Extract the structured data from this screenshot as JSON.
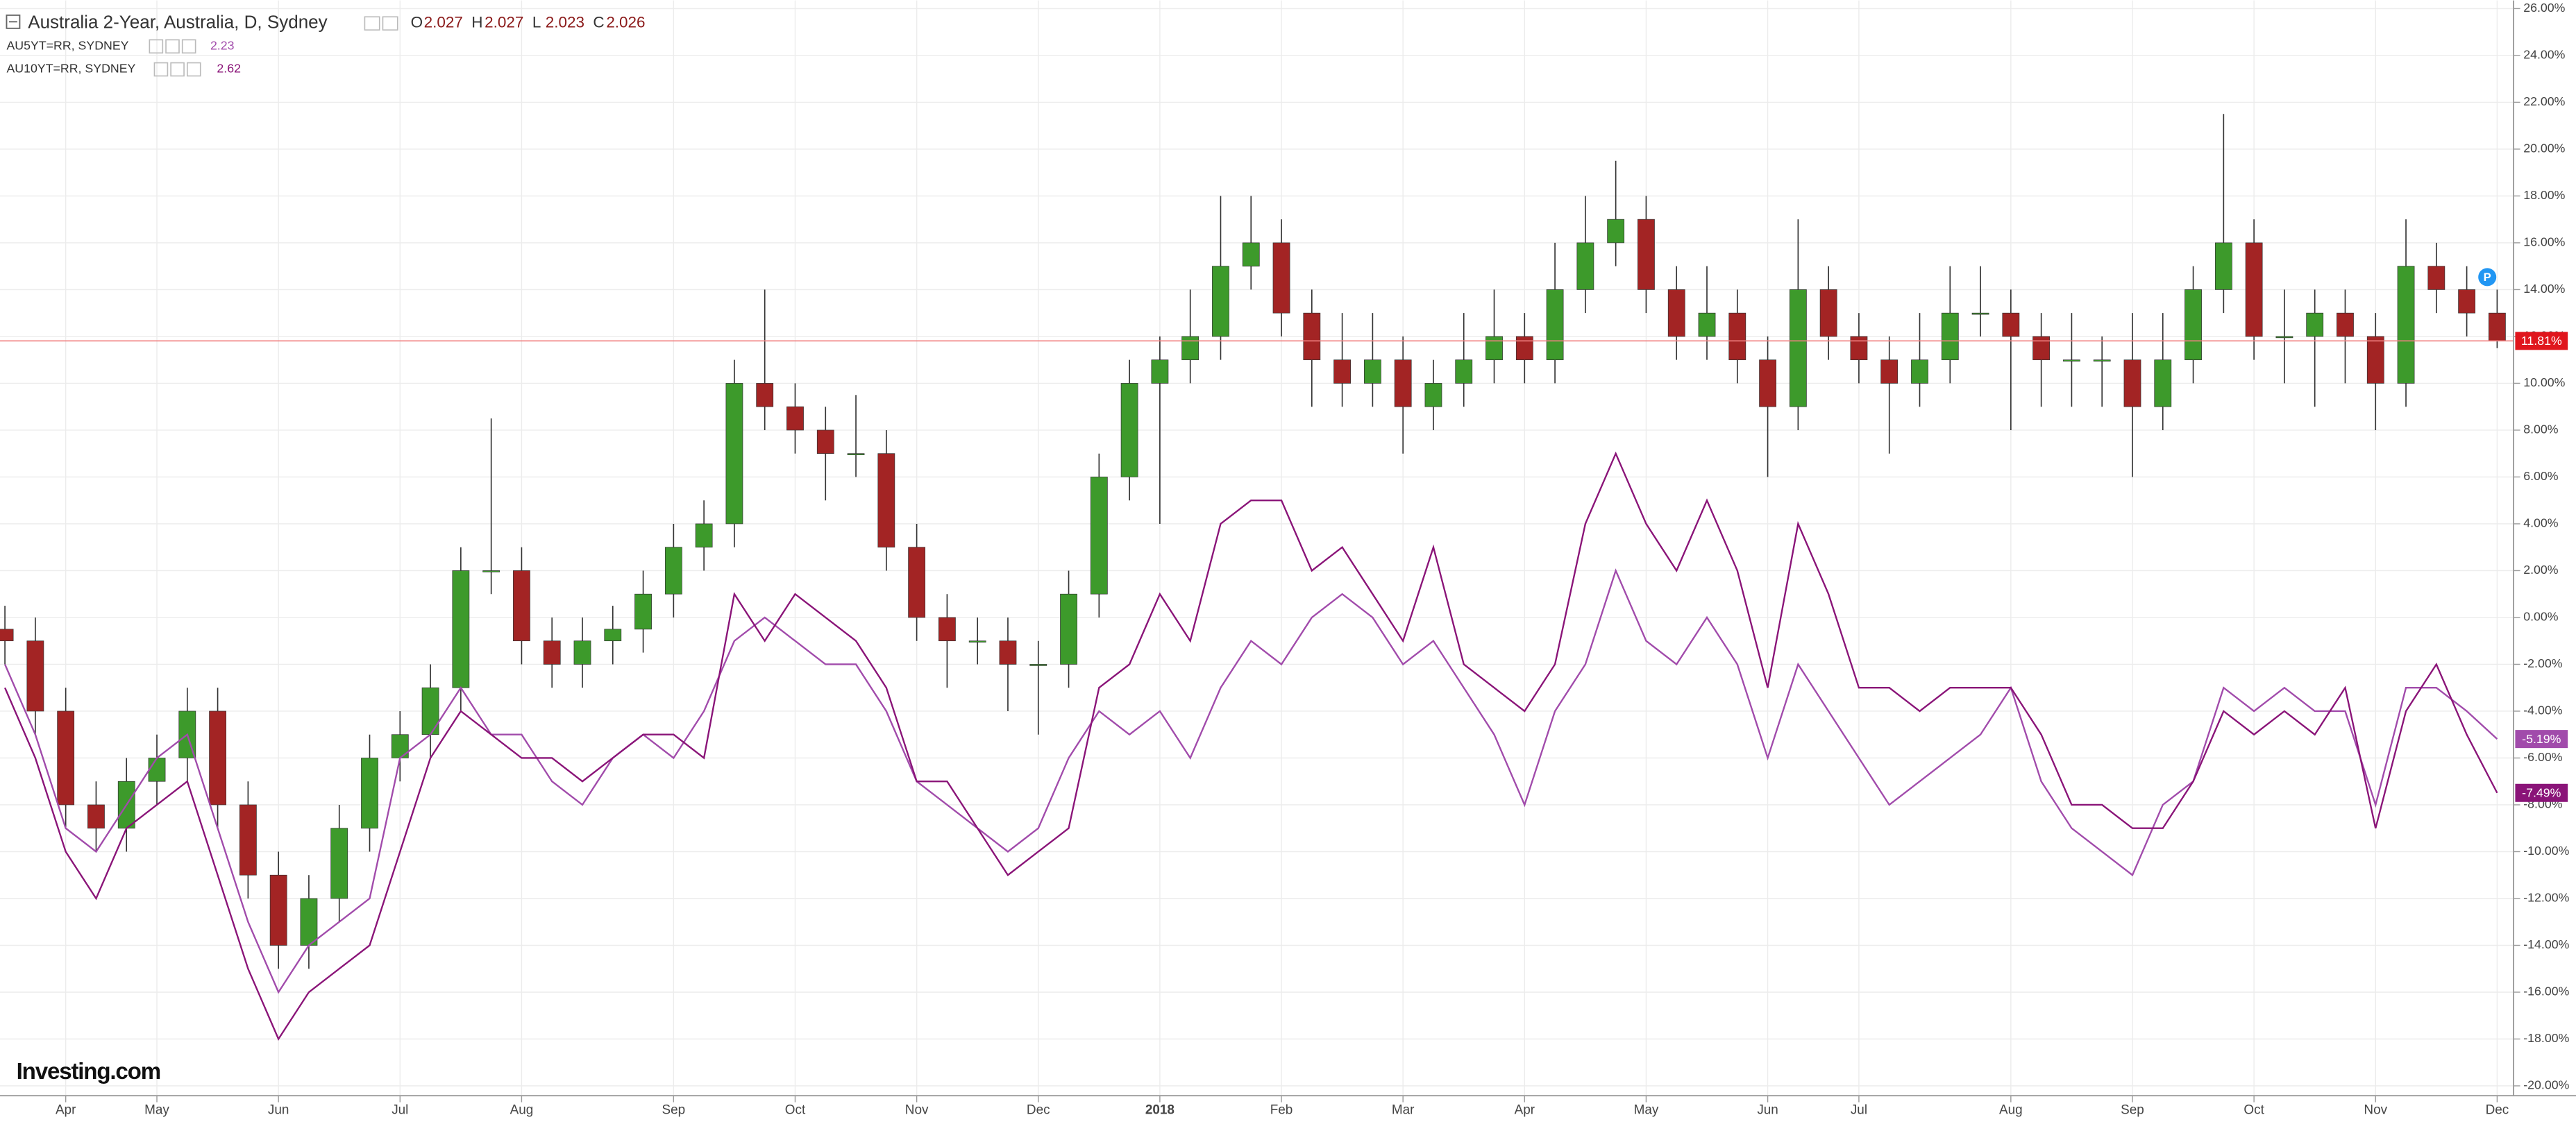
{
  "chart_data": {
    "type": "candlestick",
    "logo": "Investing.com",
    "badge": "P",
    "categories": [
      null,
      null,
      "Apr",
      null,
      null,
      "May",
      null,
      null,
      null,
      "Jun",
      null,
      null,
      null,
      "Jul",
      null,
      null,
      null,
      "Aug",
      null,
      null,
      null,
      null,
      "Sep",
      null,
      null,
      null,
      "Oct",
      null,
      null,
      null,
      "Nov",
      null,
      null,
      null,
      "Dec",
      null,
      null,
      null,
      "2018",
      null,
      null,
      null,
      "Feb",
      null,
      null,
      null,
      "Mar",
      null,
      null,
      null,
      "Apr",
      null,
      null,
      null,
      "May",
      null,
      null,
      null,
      "Jun",
      null,
      null,
      "Jul",
      null,
      null,
      null,
      null,
      "Aug",
      null,
      null,
      null,
      "Sep",
      null,
      null,
      null,
      "Oct",
      null,
      null,
      null,
      "Nov",
      null,
      null,
      null,
      "Dec"
    ],
    "ylim": [
      -20.42,
      26.35
    ],
    "yticks": [
      {
        "value": 26,
        "label": "26.00%"
      },
      {
        "value": 24,
        "label": "24.00%"
      },
      {
        "value": 22,
        "label": "22.00%"
      },
      {
        "value": 20,
        "label": "20.00%"
      },
      {
        "value": 18,
        "label": "18.00%"
      },
      {
        "value": 16,
        "label": "16.00%"
      },
      {
        "value": 14,
        "label": "14.00%"
      },
      {
        "value": 12,
        "label": "12.00%"
      },
      {
        "value": 10,
        "label": "10.00%"
      },
      {
        "value": 8,
        "label": "8.00%"
      },
      {
        "value": 6,
        "label": "6.00%"
      },
      {
        "value": 4,
        "label": "4.00%"
      },
      {
        "value": 2,
        "label": "2.00%"
      },
      {
        "value": 0,
        "label": "0.00%"
      },
      {
        "value": -2,
        "label": "-2.00%"
      },
      {
        "value": -4,
        "label": "-4.00%"
      },
      {
        "value": -6,
        "label": "-6.00%"
      },
      {
        "value": -8,
        "label": "-8.00%"
      },
      {
        "value": -10,
        "label": "-10.00%"
      },
      {
        "value": -12,
        "label": "-12.00%"
      },
      {
        "value": -14,
        "label": "-14.00%"
      },
      {
        "value": -16,
        "label": "-16.00%"
      },
      {
        "value": -18,
        "label": "-18.00%"
      },
      {
        "value": -20,
        "label": "-20.00%"
      }
    ],
    "grid": true,
    "series": [
      {
        "name": "Australia 2-Year, Australia, D, Sydney",
        "type": "candlestick",
        "up_color": "#3d9a2b",
        "down_color": "#a32424",
        "last_line_color": "#f08080",
        "label_color": "#e0161d",
        "quote": [
          {
            "label": "O",
            "value": "2.027"
          },
          {
            "label": "H",
            "value": "2.027"
          },
          {
            "label": "L",
            "value": "2.023"
          },
          {
            "label": "C",
            "value": "2.026"
          }
        ],
        "open": [
          -0.5,
          -1,
          -4,
          -8,
          -9,
          -7,
          -6,
          -4,
          -8,
          -11,
          -14,
          -12,
          -9,
          -6,
          -5,
          -3,
          2,
          2,
          -1,
          -2,
          -1,
          -0.5,
          1,
          3,
          4,
          10,
          9,
          8,
          7,
          7,
          3,
          0,
          -1,
          -1,
          -2,
          -2,
          1,
          6,
          10,
          11,
          12,
          15,
          16,
          13,
          11,
          10,
          11,
          9,
          10,
          11,
          12,
          11,
          14,
          16,
          17,
          14,
          12,
          13,
          11,
          9,
          14,
          12,
          11,
          10,
          11,
          13,
          13,
          12,
          11,
          11,
          11,
          9,
          11,
          14,
          16,
          12,
          12,
          13,
          12,
          10,
          15,
          14,
          13
        ],
        "high": [
          0.5,
          0,
          -3,
          -7,
          -6,
          -5,
          -3,
          -3,
          -7,
          -10,
          -11,
          -8,
          -5,
          -4,
          -2,
          3,
          8.5,
          3,
          0,
          0,
          0.5,
          2,
          4,
          5,
          11,
          14,
          10,
          9,
          9.5,
          8,
          4,
          1,
          0,
          0,
          -1,
          2,
          7,
          11,
          12,
          14,
          18,
          18,
          17,
          14,
          13,
          13,
          12,
          11,
          13,
          14,
          13,
          16,
          18,
          19.5,
          18,
          15,
          15,
          14,
          12,
          17,
          15,
          13,
          12,
          13,
          15,
          15,
          14,
          13,
          13,
          12,
          13,
          13,
          15,
          21.5,
          17,
          14,
          14,
          14,
          13,
          17,
          16,
          15,
          14
        ],
        "low": [
          -2,
          -5,
          -9,
          -10,
          -10,
          -8,
          -7,
          -9,
          -12,
          -15,
          -15,
          -13,
          -10,
          -7,
          -6,
          -4,
          1,
          -2,
          -3,
          -3,
          -2,
          -1.5,
          0,
          2,
          3,
          8,
          7,
          5,
          6,
          2,
          -1,
          -3,
          -2,
          -4,
          -5,
          -3,
          0,
          5,
          4,
          10,
          11,
          14,
          12,
          9,
          9,
          9,
          7,
          8,
          9,
          10,
          10,
          10,
          13,
          15,
          13,
          11,
          11,
          10,
          6,
          8,
          11,
          10,
          7,
          9,
          10,
          12,
          8,
          9,
          9,
          9,
          6,
          8,
          10,
          13,
          11,
          10,
          9,
          10,
          8,
          9,
          13,
          12,
          11.5
        ],
        "close": [
          -1,
          -4,
          -8,
          -9,
          -7,
          -6,
          -4,
          -8,
          -11,
          -14,
          -12,
          -9,
          -6,
          -5,
          -3,
          2,
          2,
          -1,
          -2,
          -1,
          -0.5,
          1,
          3,
          4,
          10,
          9,
          8,
          7,
          7,
          3,
          0,
          -1,
          -1,
          -2,
          -2,
          1,
          6,
          10,
          11,
          12,
          15,
          16,
          13,
          11,
          10,
          11,
          9,
          10,
          11,
          12,
          11,
          14,
          16,
          17,
          14,
          12,
          13,
          11,
          9,
          14,
          12,
          11,
          10,
          11,
          13,
          13,
          12,
          11,
          11,
          11,
          9,
          11,
          14,
          16,
          12,
          12,
          13,
          12,
          10,
          15,
          14,
          13,
          11.81
        ],
        "value_labels": [
          null,
          null,
          null,
          null,
          null,
          null,
          null,
          null,
          null,
          null,
          null,
          null,
          null,
          null,
          null,
          null,
          null,
          null,
          null,
          null,
          null,
          null,
          null,
          null,
          null,
          null,
          null,
          null,
          null,
          null,
          null,
          null,
          null,
          null,
          null,
          null,
          null,
          null,
          null,
          null,
          null,
          null,
          null,
          null,
          null,
          null,
          null,
          null,
          null,
          null,
          null,
          null,
          null,
          null,
          null,
          null,
          null,
          null,
          null,
          null,
          null,
          null,
          null,
          null,
          null,
          null,
          null,
          null,
          null,
          null,
          null,
          null,
          null,
          null,
          null,
          null,
          null,
          null,
          null,
          null,
          null,
          null,
          "11.81%"
        ]
      },
      {
        "name": "AU5YT=RR, SYDNEY",
        "type": "line",
        "color": "#a14bab",
        "quote": "2.23",
        "values": [
          -2,
          -5,
          -9,
          -10,
          -8,
          -6,
          -5,
          -9,
          -13,
          -16,
          -14,
          -13,
          -12,
          -6,
          -5,
          -3,
          -5,
          -5,
          -7,
          -8,
          -6,
          -5,
          -6,
          -4,
          -1,
          0,
          -1,
          -2,
          -2,
          -4,
          -7,
          -8,
          -9,
          -10,
          -9,
          -6,
          -4,
          -5,
          -4,
          -6,
          -3,
          -1,
          -2,
          0,
          1,
          0,
          -2,
          -1,
          -3,
          -5,
          -8,
          -4,
          -2,
          2,
          -1,
          -2,
          0,
          -2,
          -6,
          -2,
          -4,
          -6,
          -8,
          -7,
          -6,
          -5,
          -3,
          -7,
          -9,
          -10,
          -11,
          -8,
          -7,
          -3,
          -4,
          -3,
          -4,
          -4,
          -8,
          -3,
          -3,
          -4,
          -5.19
        ],
        "value_labels": [
          null,
          null,
          null,
          null,
          null,
          null,
          null,
          null,
          null,
          null,
          null,
          null,
          null,
          null,
          null,
          null,
          null,
          null,
          null,
          null,
          null,
          null,
          null,
          null,
          null,
          null,
          null,
          null,
          null,
          null,
          null,
          null,
          null,
          null,
          null,
          null,
          null,
          null,
          null,
          null,
          null,
          null,
          null,
          null,
          null,
          null,
          null,
          null,
          null,
          null,
          null,
          null,
          null,
          null,
          null,
          null,
          null,
          null,
          null,
          null,
          null,
          null,
          null,
          null,
          null,
          null,
          null,
          null,
          null,
          null,
          null,
          null,
          null,
          null,
          null,
          null,
          null,
          null,
          null,
          null,
          null,
          null,
          "-5.19%"
        ]
      },
      {
        "name": "AU10YT=RR, SYDNEY",
        "type": "line",
        "color": "#8a1478",
        "quote": "2.62",
        "values": [
          -3,
          -6,
          -10,
          -12,
          -9,
          -8,
          -7,
          -11,
          -15,
          -18,
          -16,
          -15,
          -14,
          -10,
          -6,
          -4,
          -5,
          -6,
          -6,
          -7,
          -6,
          -5,
          -5,
          -6,
          1,
          -1,
          1,
          0,
          -1,
          -3,
          -7,
          -7,
          -9,
          -11,
          -10,
          -9,
          -3,
          -2,
          1,
          -1,
          4,
          5,
          5,
          2,
          3,
          1,
          -1,
          3,
          -2,
          -3,
          -4,
          -2,
          4,
          7,
          4,
          2,
          5,
          2,
          -3,
          4,
          1,
          -3,
          -3,
          -4,
          -3,
          -3,
          -3,
          -5,
          -8,
          -8,
          -9,
          -9,
          -7,
          -4,
          -5,
          -4,
          -5,
          -3,
          -9,
          -4,
          -2,
          -5,
          -7.49
        ],
        "value_labels": [
          null,
          null,
          null,
          null,
          null,
          null,
          null,
          null,
          null,
          null,
          null,
          null,
          null,
          null,
          null,
          null,
          null,
          null,
          null,
          null,
          null,
          null,
          null,
          null,
          null,
          null,
          null,
          null,
          null,
          null,
          null,
          null,
          null,
          null,
          null,
          null,
          null,
          null,
          null,
          null,
          null,
          null,
          null,
          null,
          null,
          null,
          null,
          null,
          null,
          null,
          null,
          null,
          null,
          null,
          null,
          null,
          null,
          null,
          null,
          null,
          null,
          null,
          null,
          null,
          null,
          null,
          null,
          null,
          null,
          null,
          null,
          null,
          null,
          null,
          null,
          null,
          null,
          null,
          null,
          null,
          null,
          null,
          "-7.49%"
        ]
      }
    ]
  }
}
